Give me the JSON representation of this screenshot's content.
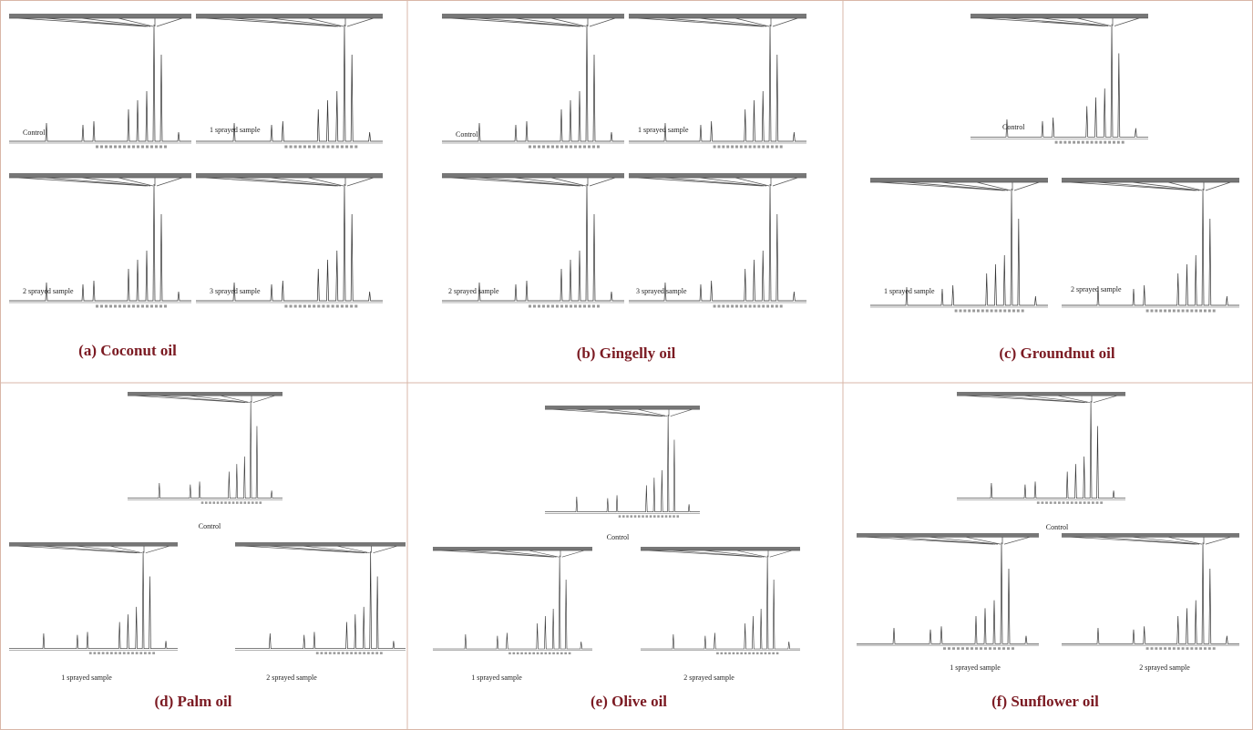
{
  "panels": [
    {
      "caption": "(a) Coconut oil",
      "spectra": [
        "Control",
        "1 sprayed sample",
        "2 sprayed sample",
        "3 sprayed sample"
      ]
    },
    {
      "caption": "(b) Gingelly oil",
      "spectra": [
        "Control",
        "1 sprayed sample",
        "2 sprayed sample",
        "3 sprayed sample"
      ]
    },
    {
      "caption": "(c) Groundnut oil",
      "spectra": [
        "Control",
        "1 sprayed sample",
        "2 sprayed sample"
      ]
    },
    {
      "caption": "(d) Palm oil",
      "spectra": [
        "Control",
        "1 sprayed sample",
        "2 sprayed sample"
      ]
    },
    {
      "caption": "(e) Olive oil",
      "spectra": [
        "Control",
        "1 sprayed sample",
        "2 sprayed sample"
      ]
    },
    {
      "caption": "(f) Sunflower oil",
      "spectra": [
        "Control",
        "1 sprayed sample",
        "2 sprayed sample"
      ]
    }
  ]
}
